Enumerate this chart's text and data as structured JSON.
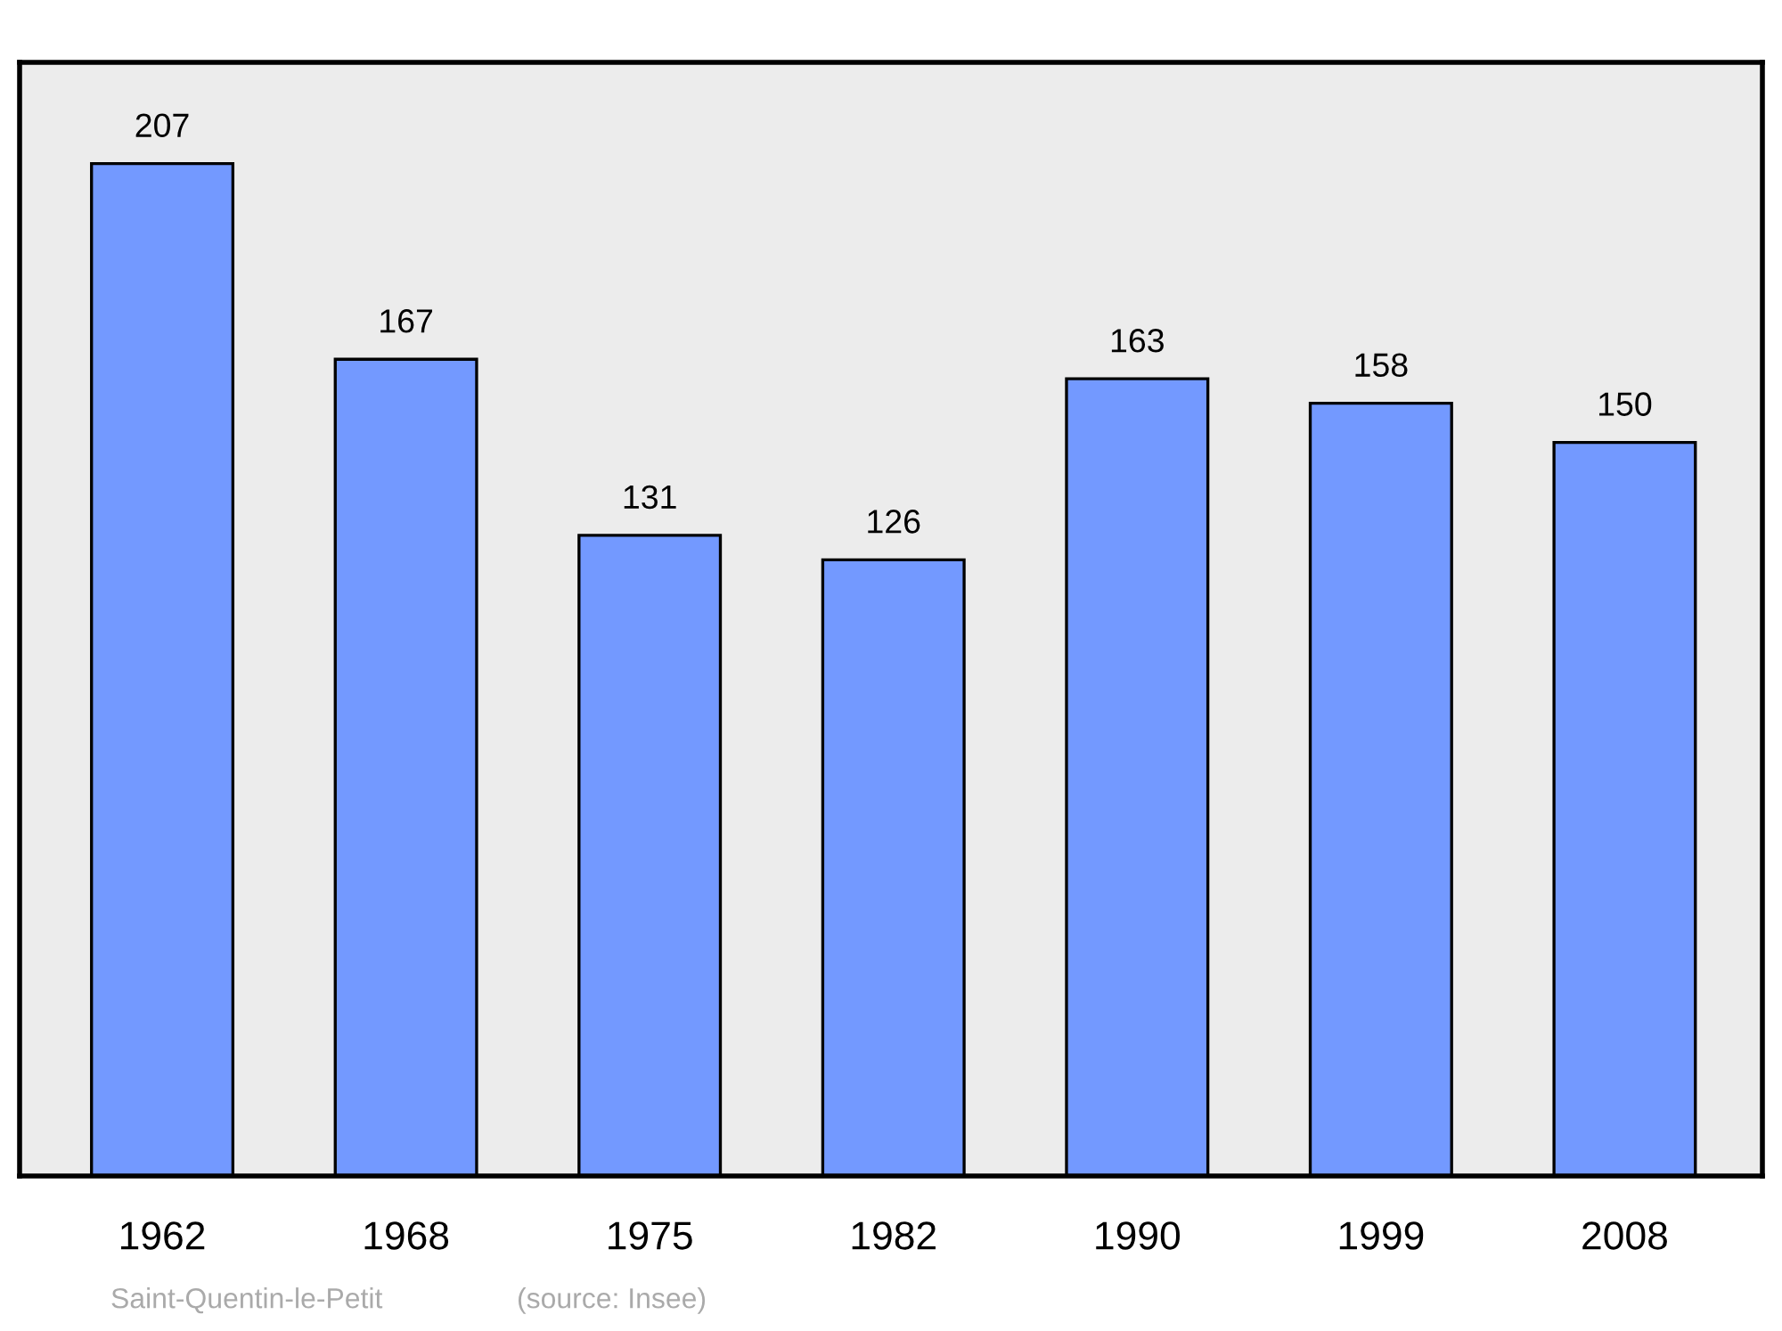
{
  "chart_data": {
    "type": "bar",
    "categories": [
      "1962",
      "1968",
      "1975",
      "1982",
      "1990",
      "1999",
      "2008"
    ],
    "values": [
      207,
      167,
      131,
      126,
      163,
      158,
      150
    ],
    "color": "#7399ff",
    "data_labels": true,
    "grid": false,
    "legend": false,
    "annotations": [
      "Saint-Quentin-le-Petit",
      "(source: Insee)"
    ]
  }
}
